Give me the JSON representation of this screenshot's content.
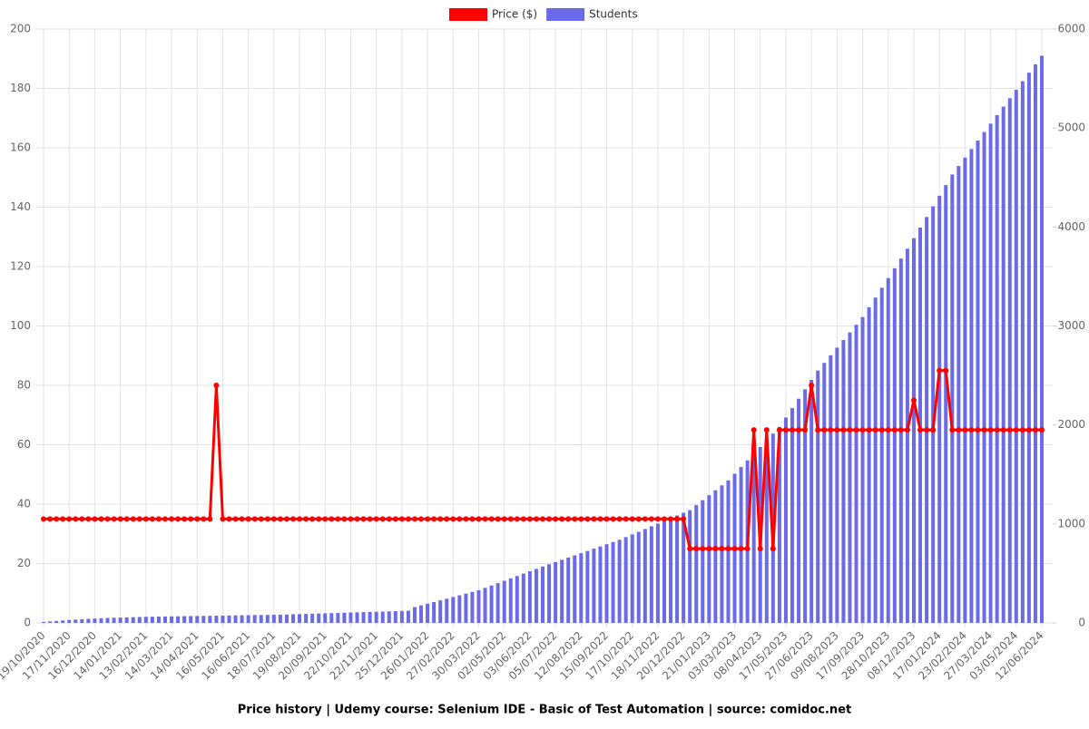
{
  "chart_data": {
    "type": "bar-line",
    "title": "Price history | Udemy course: Selenium IDE - Basic of Test Automation | source: comidoc.net",
    "categories": [
      "19/10/2020",
      null,
      null,
      null,
      "17/11/2020",
      null,
      null,
      null,
      "16/12/2020",
      null,
      null,
      null,
      "14/01/2021",
      null,
      null,
      null,
      "13/02/2021",
      null,
      null,
      null,
      "14/03/2021",
      null,
      null,
      null,
      "14/04/2021",
      null,
      null,
      null,
      "16/05/2021",
      null,
      null,
      null,
      "16/06/2021",
      null,
      null,
      null,
      "18/07/2021",
      null,
      null,
      null,
      "19/08/2021",
      null,
      null,
      null,
      "20/09/2021",
      null,
      null,
      null,
      "22/10/2021",
      null,
      null,
      null,
      "22/11/2021",
      null,
      null,
      null,
      "25/12/2021",
      null,
      null,
      null,
      "26/01/2022",
      null,
      null,
      null,
      "27/02/2022",
      null,
      null,
      null,
      "30/03/2022",
      null,
      null,
      null,
      "02/05/2022",
      null,
      null,
      null,
      "03/06/2022",
      null,
      null,
      null,
      "05/07/2022",
      null,
      null,
      null,
      "12/08/2022",
      null,
      null,
      null,
      "15/09/2022",
      null,
      null,
      null,
      "17/10/2022",
      null,
      null,
      null,
      "18/11/2022",
      null,
      null,
      null,
      "20/12/2022",
      null,
      null,
      null,
      "21/01/2023",
      null,
      null,
      null,
      "03/03/2023",
      null,
      null,
      null,
      "08/04/2023",
      null,
      null,
      null,
      "17/05/2023",
      null,
      null,
      null,
      "27/06/2023",
      null,
      null,
      null,
      "09/08/2023",
      null,
      null,
      null,
      "17/09/2023",
      null,
      null,
      null,
      "28/10/2023",
      null,
      null,
      null,
      "08/12/2023",
      null,
      null,
      null,
      "17/01/2024",
      null,
      null,
      null,
      "23/02/2024",
      null,
      null,
      null,
      "27/03/2024",
      null,
      null,
      null,
      "03/05/2024",
      null,
      null,
      null,
      "12/06/2024"
    ],
    "series": [
      {
        "name": "Price ($)",
        "color": "#ff0000",
        "type": "line",
        "axis": "y",
        "values": [
          35,
          35,
          35,
          35,
          35,
          35,
          35,
          35,
          35,
          35,
          35,
          35,
          35,
          35,
          35,
          35,
          35,
          35,
          35,
          35,
          35,
          35,
          35,
          35,
          35,
          35,
          35,
          80,
          35,
          35,
          35,
          35,
          35,
          35,
          35,
          35,
          35,
          35,
          35,
          35,
          35,
          35,
          35,
          35,
          35,
          35,
          35,
          35,
          35,
          35,
          35,
          35,
          35,
          35,
          35,
          35,
          35,
          35,
          35,
          35,
          35,
          35,
          35,
          35,
          35,
          35,
          35,
          35,
          35,
          35,
          35,
          35,
          35,
          35,
          35,
          35,
          35,
          35,
          35,
          35,
          35,
          35,
          35,
          35,
          35,
          35,
          35,
          35,
          35,
          35,
          35,
          35,
          35,
          35,
          35,
          35,
          35,
          35,
          35,
          35,
          35,
          25,
          25,
          25,
          25,
          25,
          25,
          25,
          25,
          25,
          25,
          65,
          25,
          65,
          25,
          65,
          65,
          65,
          65,
          65,
          80,
          65,
          65,
          65,
          65,
          65,
          65,
          65,
          65,
          65,
          65,
          65,
          65,
          65,
          65,
          65,
          75,
          65,
          65,
          65,
          85,
          85,
          65,
          65,
          65,
          65,
          65,
          65,
          65,
          65,
          65,
          65,
          65,
          65,
          65,
          65,
          65
        ]
      },
      {
        "name": "Students",
        "color": "#6b6bea",
        "type": "bar",
        "axis": "y2",
        "values": [
          10,
          15,
          20,
          25,
          30,
          34,
          38,
          41,
          44,
          47,
          50,
          52,
          54,
          56,
          58,
          60,
          62,
          63,
          64,
          65,
          66,
          67,
          68,
          69,
          70,
          71,
          72,
          73,
          74,
          75,
          76,
          77,
          78,
          79,
          80,
          81,
          82,
          83,
          85,
          87,
          89,
          91,
          93,
          95,
          97,
          99,
          101,
          103,
          105,
          107,
          109,
          111,
          113,
          115,
          117,
          119,
          121,
          123,
          160,
          177,
          194,
          211,
          228,
          245,
          262,
          279,
          296,
          313,
          330,
          354,
          378,
          402,
          426,
          450,
          474,
          498,
          522,
          546,
          570,
          592,
          615,
          637,
          660,
          682,
          705,
          727,
          750,
          772,
          795,
          817,
          840,
          867,
          894,
          921,
          949,
          976,
          1003,
          1031,
          1058,
          1085,
          1113,
          1140,
          1190,
          1240,
          1290,
          1340,
          1390,
          1440,
          1507,
          1575,
          1642,
          1710,
          1777,
          1845,
          1912,
          1980,
          2075,
          2170,
          2265,
          2360,
          2455,
          2550,
          2627,
          2704,
          2781,
          2858,
          2935,
          3012,
          3090,
          3189,
          3287,
          3386,
          3484,
          3583,
          3681,
          3780,
          3887,
          3994,
          4101,
          4209,
          4316,
          4423,
          4530,
          4616,
          4701,
          4787,
          4873,
          4959,
          5044,
          5130,
          5216,
          5301,
          5387,
          5473,
          5559,
          5644,
          5730
        ]
      }
    ],
    "ylim": [
      0,
      200
    ],
    "yticks": [
      0,
      20,
      40,
      60,
      80,
      100,
      120,
      140,
      160,
      180,
      200
    ],
    "y2lim": [
      0,
      6000
    ],
    "y2ticks": [
      0,
      1000,
      2000,
      3000,
      4000,
      5000,
      6000
    ],
    "grid": true,
    "legend": "top"
  }
}
